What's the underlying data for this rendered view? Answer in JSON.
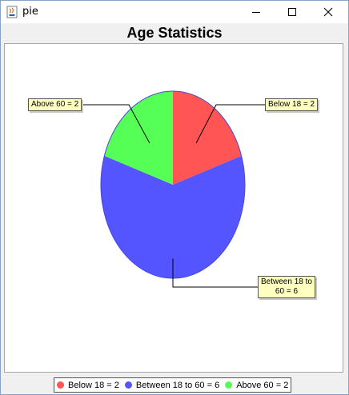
{
  "window": {
    "title": "pie"
  },
  "chart_data": {
    "type": "pie",
    "title": "Age Statistics",
    "categories": [
      "Below 18",
      "Between 18 to 60",
      "Above 60"
    ],
    "values": [
      2,
      6,
      2
    ],
    "colors": [
      "#ff5555",
      "#5555ff",
      "#55ff55"
    ],
    "labels": [
      "Below 18 = 2",
      "Between 18 to 60 = 6",
      "Above 60 = 2"
    ],
    "label_lines": [
      [
        "Below 18 = 2"
      ],
      [
        "Between 18 to",
        "60 = 6"
      ],
      [
        "Above 60 = 2"
      ]
    ],
    "legend": {
      "placement": "bottom",
      "items": [
        "Below 18 = 2",
        "Between 18 to 60 = 6",
        "Above 60 = 2"
      ]
    },
    "style": "3d"
  }
}
